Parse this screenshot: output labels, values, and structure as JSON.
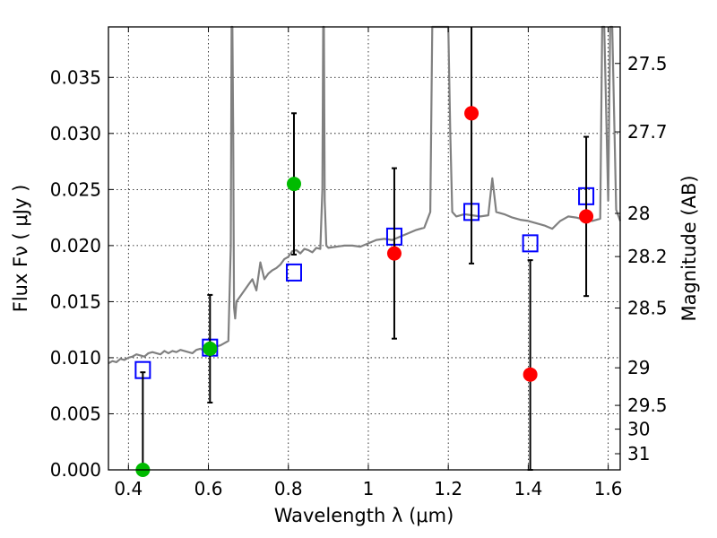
{
  "chart_data": {
    "type": "scatter",
    "xlabel": "Wavelength  λ (μm)",
    "ylabel": "Flux  Fν  ( μJy )",
    "y2label": "Magnitude (AB)",
    "xlim": [
      0.35,
      1.63
    ],
    "ylim": [
      0.0,
      0.0395
    ],
    "grid": true,
    "x_ticks": [
      0.4,
      0.6,
      0.8,
      1.0,
      1.2,
      1.4,
      1.6
    ],
    "x_tick_labels": [
      "0.4",
      "0.6",
      "0.8",
      "1",
      "1.2",
      "1.4",
      "1.6"
    ],
    "y_ticks": [
      0.0,
      0.005,
      0.01,
      0.015,
      0.02,
      0.025,
      0.03,
      0.035
    ],
    "y_tick_labels": [
      "0.000",
      "0.005",
      "0.010",
      "0.015",
      "0.020",
      "0.025",
      "0.030",
      "0.035"
    ],
    "y2_ticks": [
      {
        "label": "27.5",
        "flux": 0.03624
      },
      {
        "label": "27.7",
        "flux": 0.03014
      },
      {
        "label": "28",
        "flux": 0.02287
      },
      {
        "label": "28.2",
        "flux": 0.01902
      },
      {
        "label": "28.5",
        "flux": 0.01443
      },
      {
        "label": "29",
        "flux": 0.0091
      },
      {
        "label": "29.5",
        "flux": 0.00575
      },
      {
        "label": "30",
        "flux": 0.00363
      },
      {
        "label": "31",
        "flux": 0.00144
      }
    ],
    "series": [
      {
        "marker": "line",
        "color": "#808080",
        "x": [
          0.35,
          0.36,
          0.37,
          0.38,
          0.39,
          0.4,
          0.41,
          0.42,
          0.43,
          0.44,
          0.45,
          0.46,
          0.47,
          0.48,
          0.49,
          0.5,
          0.51,
          0.52,
          0.53,
          0.54,
          0.55,
          0.56,
          0.57,
          0.58,
          0.59,
          0.6,
          0.61,
          0.62,
          0.63,
          0.64,
          0.65,
          0.656,
          0.658,
          0.66,
          0.662,
          0.664,
          0.667,
          0.67,
          0.68,
          0.69,
          0.7,
          0.71,
          0.72,
          0.73,
          0.74,
          0.75,
          0.76,
          0.77,
          0.78,
          0.79,
          0.8,
          0.81,
          0.82,
          0.83,
          0.84,
          0.85,
          0.86,
          0.87,
          0.88,
          0.885,
          0.887,
          0.889,
          0.891,
          0.895,
          0.9,
          0.92,
          0.94,
          0.96,
          0.98,
          1.0,
          1.02,
          1.04,
          1.06,
          1.08,
          1.1,
          1.12,
          1.14,
          1.155,
          1.16,
          1.17,
          1.18,
          1.19,
          1.2,
          1.205,
          1.21,
          1.22,
          1.24,
          1.26,
          1.28,
          1.3,
          1.31,
          1.32,
          1.34,
          1.36,
          1.38,
          1.4,
          1.42,
          1.44,
          1.46,
          1.48,
          1.5,
          1.52,
          1.54,
          1.56,
          1.58,
          1.585,
          1.59,
          1.6,
          1.605,
          1.61,
          1.62,
          1.63
        ],
        "y": [
          0.0095,
          0.0097,
          0.0096,
          0.0099,
          0.0098,
          0.01,
          0.0101,
          0.0103,
          0.0102,
          0.0101,
          0.0104,
          0.0105,
          0.0104,
          0.0103,
          0.0106,
          0.0104,
          0.0106,
          0.0105,
          0.0107,
          0.0106,
          0.0105,
          0.0104,
          0.0107,
          0.0108,
          0.0106,
          0.0109,
          0.0112,
          0.011,
          0.0111,
          0.0113,
          0.0115,
          0.02,
          0.0395,
          0.0395,
          0.03,
          0.0145,
          0.0135,
          0.015,
          0.0155,
          0.016,
          0.0165,
          0.017,
          0.016,
          0.0185,
          0.017,
          0.0175,
          0.0178,
          0.018,
          0.0183,
          0.0188,
          0.019,
          0.0195,
          0.0196,
          0.0193,
          0.0197,
          0.0196,
          0.0194,
          0.0198,
          0.0197,
          0.025,
          0.0395,
          0.0395,
          0.024,
          0.02,
          0.0198,
          0.0199,
          0.02,
          0.02,
          0.0199,
          0.0202,
          0.0205,
          0.0206,
          0.0205,
          0.0208,
          0.0211,
          0.0214,
          0.0216,
          0.023,
          0.0395,
          0.0395,
          0.0395,
          0.0395,
          0.0395,
          0.03,
          0.023,
          0.0226,
          0.0228,
          0.0227,
          0.0226,
          0.0227,
          0.026,
          0.023,
          0.0228,
          0.0225,
          0.0223,
          0.0222,
          0.022,
          0.0218,
          0.0215,
          0.0222,
          0.0226,
          0.0225,
          0.0223,
          0.0222,
          0.0224,
          0.0395,
          0.0395,
          0.024,
          0.0395,
          0.0395,
          0.0232,
          0.0222
        ]
      },
      {
        "marker": "square",
        "color": "#0000ff",
        "x": [
          0.436,
          0.604,
          0.814,
          1.065,
          1.258,
          1.405,
          1.545
        ],
        "y": [
          0.0089,
          0.0109,
          0.0176,
          0.0208,
          0.023,
          0.0202,
          0.0244
        ]
      },
      {
        "marker": "circle",
        "color": "#00bb00",
        "x": [
          0.436,
          0.604,
          0.814
        ],
        "y": [
          0.0,
          0.0108,
          0.0255
        ],
        "err": [
          0.0087,
          0.0048,
          0.0063
        ]
      },
      {
        "marker": "circle",
        "color": "#ff0000",
        "x": [
          1.065,
          1.258,
          1.405,
          1.545
        ],
        "y": [
          0.0193,
          0.0318,
          0.0085,
          0.0226
        ],
        "err": [
          0.0076,
          0.0134,
          0.0102,
          0.0071
        ]
      }
    ]
  }
}
